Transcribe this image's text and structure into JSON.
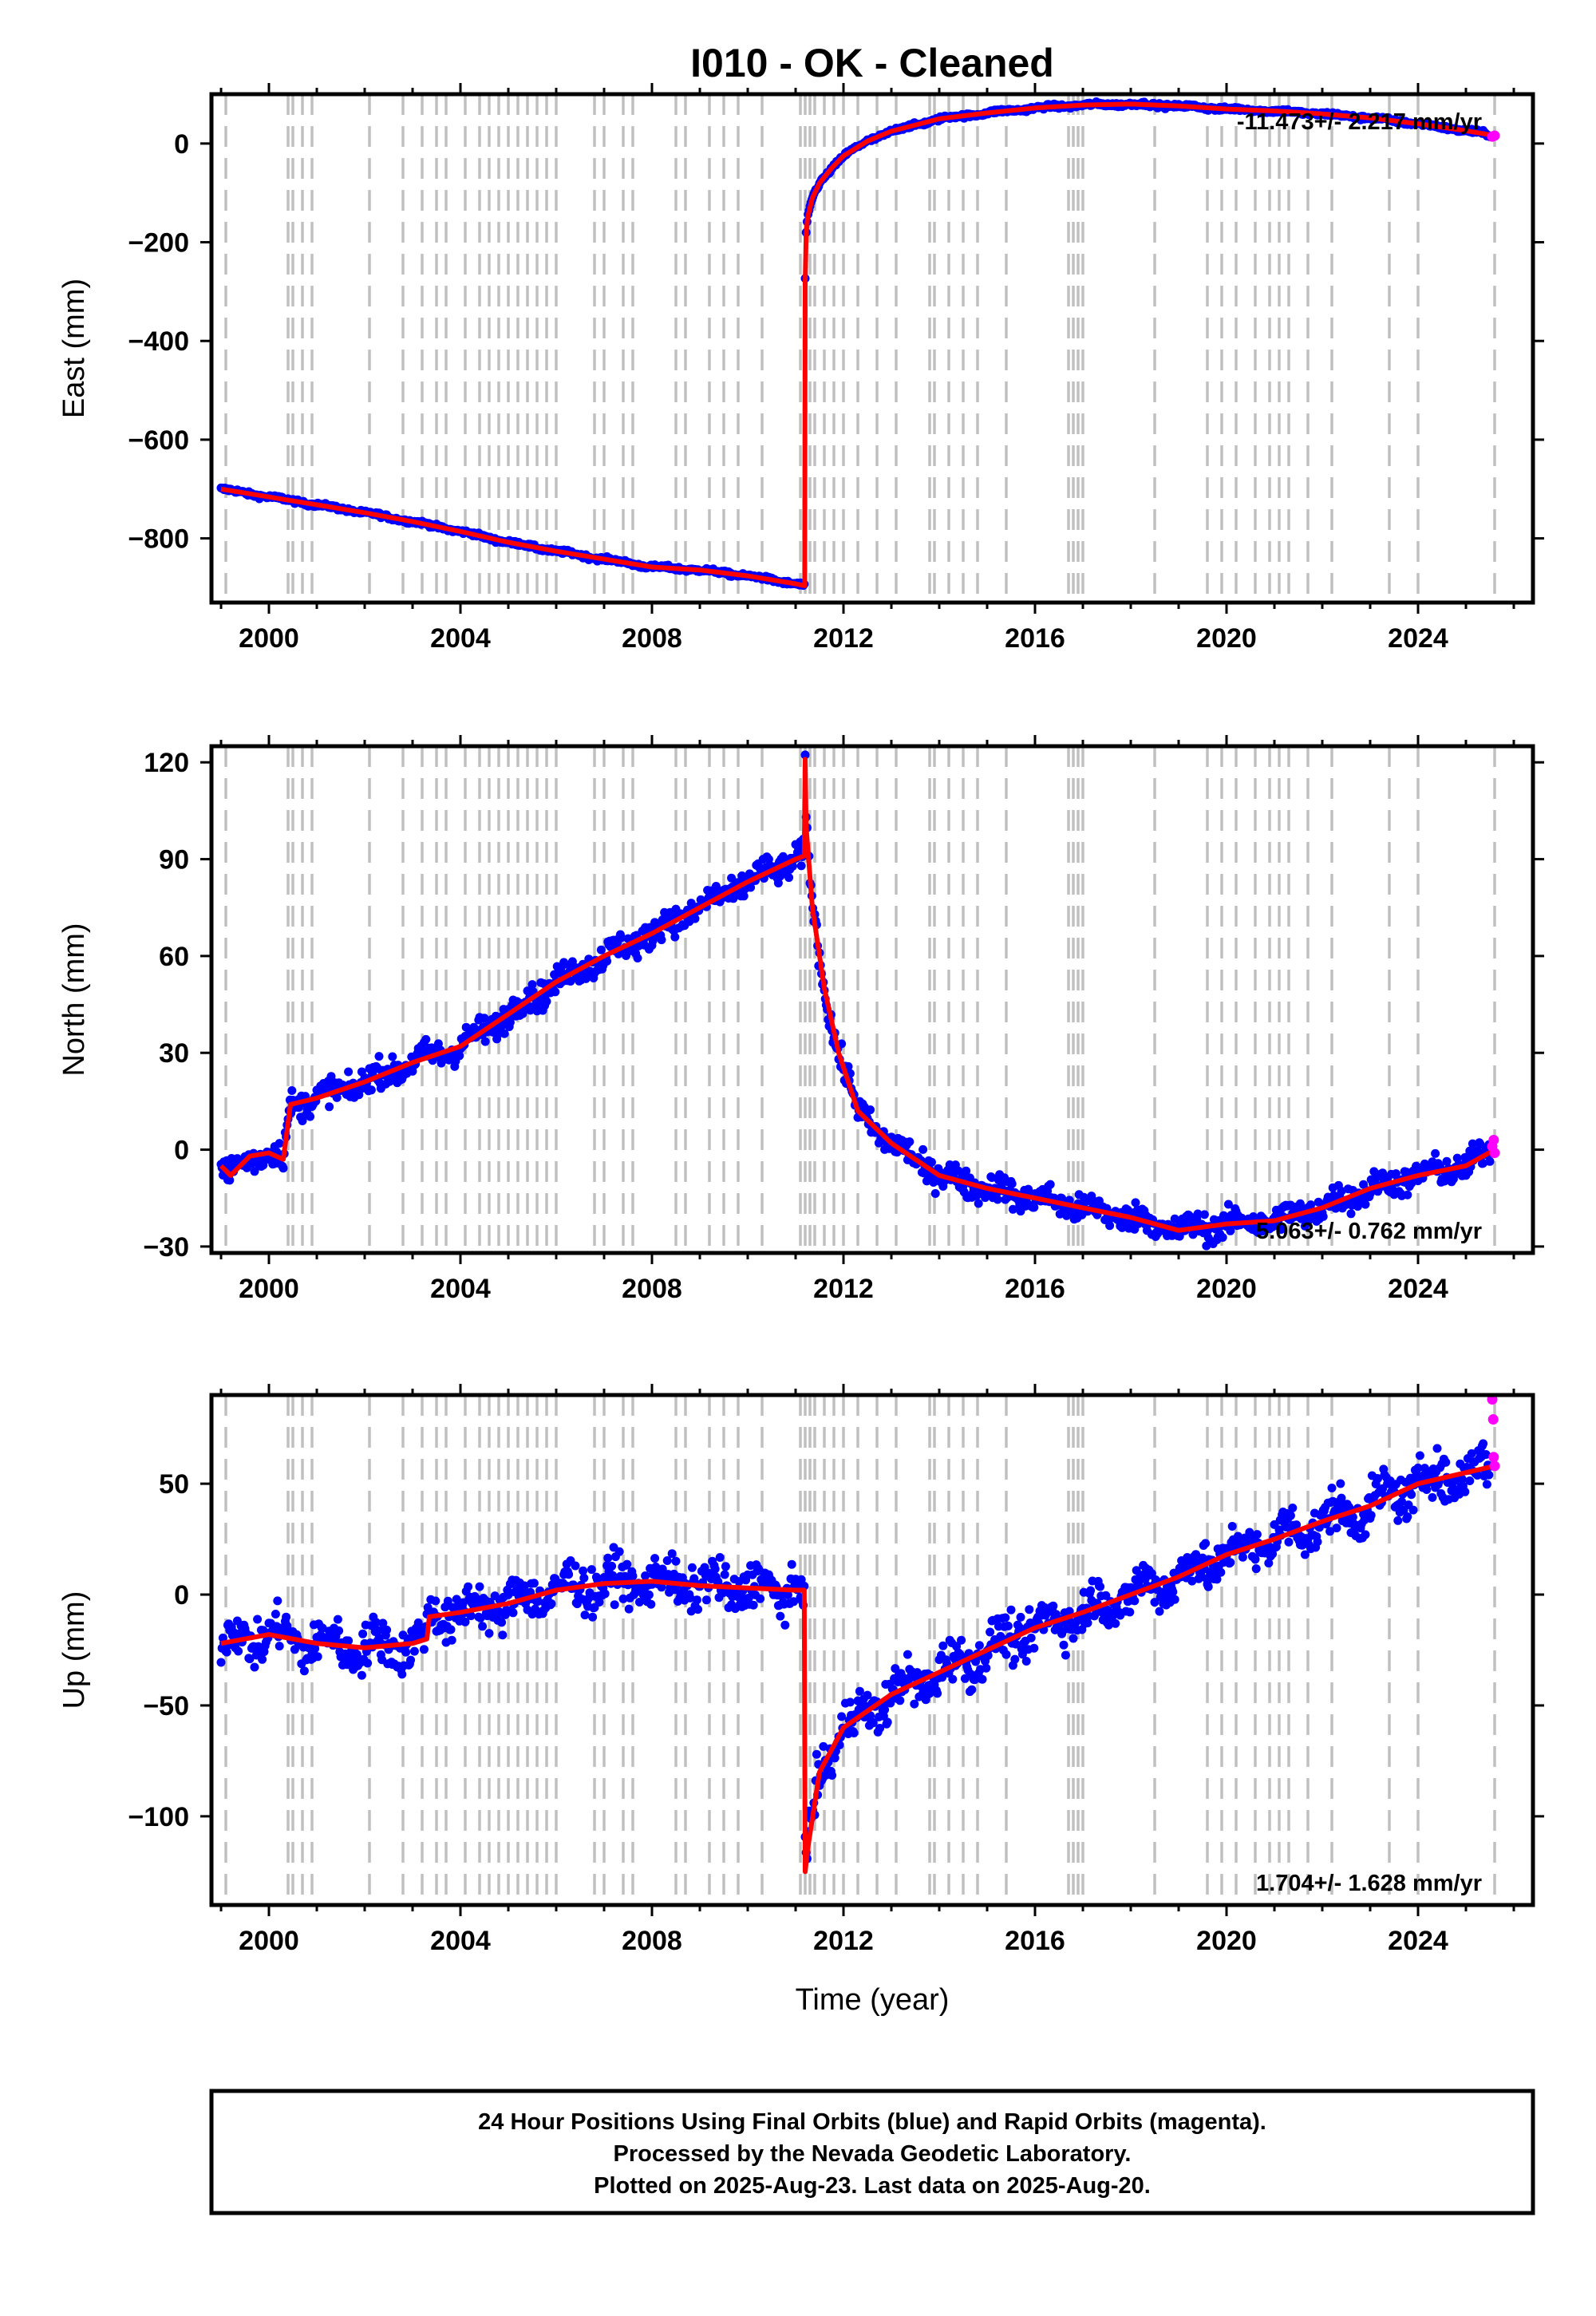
{
  "chart_data": {
    "type": "scatter",
    "title": "I010  - OK - Cleaned",
    "xlabel": "Time (year)",
    "x_ticks": [
      2000,
      2004,
      2008,
      2012,
      2016,
      2020,
      2024
    ],
    "xlim": [
      1998.8,
      2026.4
    ],
    "legend": "none",
    "grid": false,
    "colors": {
      "final": "#0000ff",
      "rapid": "#ff00ff",
      "model": "#ff0000",
      "event_lines": "#c0c0c0"
    },
    "event_lines": [
      1999.1,
      2000.4,
      2000.5,
      2000.7,
      2000.9,
      2002.1,
      2002.8,
      2003.2,
      2003.5,
      2003.7,
      2004.1,
      2004.4,
      2004.6,
      2004.8,
      2005.0,
      2005.2,
      2005.4,
      2005.6,
      2005.8,
      2006.0,
      2006.8,
      2007.0,
      2007.4,
      2007.6,
      2008.5,
      2008.7,
      2009.2,
      2009.5,
      2009.8,
      2010.3,
      2011.1,
      2011.2,
      2011.3,
      2011.4,
      2011.6,
      2011.8,
      2012.0,
      2012.3,
      2012.7,
      2013.1,
      2013.8,
      2013.9,
      2014.2,
      2014.5,
      2014.8,
      2015.4,
      2016.7,
      2016.8,
      2016.9,
      2017.0,
      2018.5,
      2019.6,
      2019.9,
      2020.2,
      2020.6,
      2020.9,
      2021.1,
      2021.3,
      2021.7,
      2022.2,
      2023.4,
      2024.0,
      2025.6
    ],
    "panels": [
      {
        "name": "East",
        "ylabel": "East (mm)",
        "ylim": [
          -930,
          100
        ],
        "y_ticks": [
          0,
          -200,
          -400,
          -600,
          -800
        ],
        "rate_label": "-11.473+/- 2.217 mm/yr",
        "rate_position": "top-right",
        "noise": 3,
        "rapid_points": [
          [
            2025.55,
            14
          ],
          [
            2025.6,
            16
          ]
        ],
        "model": [
          [
            1999.0,
            -700
          ],
          [
            1999.5,
            -708
          ],
          [
            2000.0,
            -716
          ],
          [
            2001.0,
            -732
          ],
          [
            2002.0,
            -748
          ],
          [
            2003.0,
            -766
          ],
          [
            2004.0,
            -786
          ],
          [
            2005.0,
            -808
          ],
          [
            2006.0,
            -826
          ],
          [
            2007.0,
            -842
          ],
          [
            2008.0,
            -858
          ],
          [
            2009.0,
            -864
          ],
          [
            2010.0,
            -876
          ],
          [
            2011.0,
            -892
          ],
          [
            2011.19,
            -896
          ],
          [
            2011.2,
            -280
          ],
          [
            2011.22,
            -185
          ],
          [
            2011.25,
            -150
          ],
          [
            2011.35,
            -110
          ],
          [
            2011.5,
            -80
          ],
          [
            2011.75,
            -50
          ],
          [
            2012.0,
            -25
          ],
          [
            2012.5,
            5
          ],
          [
            2013.0,
            25
          ],
          [
            2014.0,
            50
          ],
          [
            2015.0,
            62
          ],
          [
            2016.0,
            72
          ],
          [
            2017.0,
            78
          ],
          [
            2018.0,
            80
          ],
          [
            2019.0,
            76
          ],
          [
            2020.0,
            70
          ],
          [
            2021.0,
            66
          ],
          [
            2022.0,
            60
          ],
          [
            2023.0,
            52
          ],
          [
            2024.0,
            40
          ],
          [
            2025.0,
            26
          ],
          [
            2025.6,
            16
          ]
        ]
      },
      {
        "name": "North",
        "ylabel": "North (mm)",
        "ylim": [
          -32,
          125
        ],
        "y_ticks": [
          120,
          90,
          60,
          30,
          0,
          -30
        ],
        "rate_label": "5.063+/- 0.762 mm/yr",
        "rate_position": "bottom-right",
        "noise": 3,
        "rapid_points": [
          [
            2025.55,
            1
          ],
          [
            2025.58,
            3
          ],
          [
            2025.6,
            -1
          ]
        ],
        "model": [
          [
            1999.0,
            -5
          ],
          [
            1999.2,
            -8
          ],
          [
            1999.6,
            -2
          ],
          [
            2000.0,
            -1
          ],
          [
            2000.3,
            -3
          ],
          [
            2000.45,
            14
          ],
          [
            2001.0,
            16
          ],
          [
            2002.0,
            21
          ],
          [
            2003.0,
            27
          ],
          [
            2004.0,
            32
          ],
          [
            2005.0,
            42
          ],
          [
            2006.0,
            52
          ],
          [
            2007.0,
            60
          ],
          [
            2008.0,
            67
          ],
          [
            2009.0,
            75
          ],
          [
            2010.0,
            83
          ],
          [
            2011.0,
            90
          ],
          [
            2011.18,
            91
          ],
          [
            2011.2,
            121
          ],
          [
            2011.22,
            100
          ],
          [
            2011.35,
            75
          ],
          [
            2011.6,
            50
          ],
          [
            2011.9,
            30
          ],
          [
            2012.3,
            12
          ],
          [
            2013.0,
            2
          ],
          [
            2014.0,
            -8
          ],
          [
            2015.0,
            -12
          ],
          [
            2016.0,
            -15
          ],
          [
            2017.0,
            -18
          ],
          [
            2018.0,
            -21
          ],
          [
            2019.0,
            -25
          ],
          [
            2020.0,
            -23
          ],
          [
            2021.0,
            -22
          ],
          [
            2022.0,
            -18
          ],
          [
            2023.0,
            -12
          ],
          [
            2024.0,
            -8
          ],
          [
            2025.0,
            -5
          ],
          [
            2025.6,
            0
          ]
        ]
      },
      {
        "name": "Up",
        "ylabel": "Up (mm)",
        "ylim": [
          -140,
          90
        ],
        "y_ticks": [
          50,
          0,
          -50,
          -100
        ],
        "rate_label": "1.704+/- 1.628 mm/yr",
        "rate_position": "bottom-right",
        "noise": 7,
        "rapid_points": [
          [
            2025.55,
            88
          ],
          [
            2025.57,
            79
          ],
          [
            2025.58,
            62
          ],
          [
            2025.6,
            58
          ]
        ],
        "model": [
          [
            1999.0,
            -22
          ],
          [
            2000.0,
            -18
          ],
          [
            2001.0,
            -22
          ],
          [
            2002.0,
            -24
          ],
          [
            2003.0,
            -22
          ],
          [
            2003.3,
            -20
          ],
          [
            2003.35,
            -10
          ],
          [
            2004.0,
            -8
          ],
          [
            2005.0,
            -4
          ],
          [
            2006.0,
            2
          ],
          [
            2007.0,
            5
          ],
          [
            2008.0,
            6
          ],
          [
            2009.0,
            4
          ],
          [
            2010.0,
            3
          ],
          [
            2011.0,
            2
          ],
          [
            2011.18,
            2
          ],
          [
            2011.2,
            -125
          ],
          [
            2011.25,
            -115
          ],
          [
            2011.5,
            -80
          ],
          [
            2012.0,
            -60
          ],
          [
            2013.0,
            -45
          ],
          [
            2014.0,
            -35
          ],
          [
            2015.0,
            -25
          ],
          [
            2016.0,
            -15
          ],
          [
            2017.0,
            -8
          ],
          [
            2018.0,
            0
          ],
          [
            2019.0,
            8
          ],
          [
            2020.0,
            18
          ],
          [
            2021.0,
            25
          ],
          [
            2022.0,
            33
          ],
          [
            2023.0,
            40
          ],
          [
            2024.0,
            50
          ],
          [
            2025.0,
            55
          ],
          [
            2025.6,
            58
          ]
        ]
      }
    ]
  },
  "footer": {
    "line1": "24 Hour Positions Using Final Orbits (blue) and Rapid Orbits (magenta).",
    "line2": "Processed by the Nevada Geodetic Laboratory.",
    "line3": "Plotted on 2025-Aug-23. Last data on 2025-Aug-20."
  }
}
